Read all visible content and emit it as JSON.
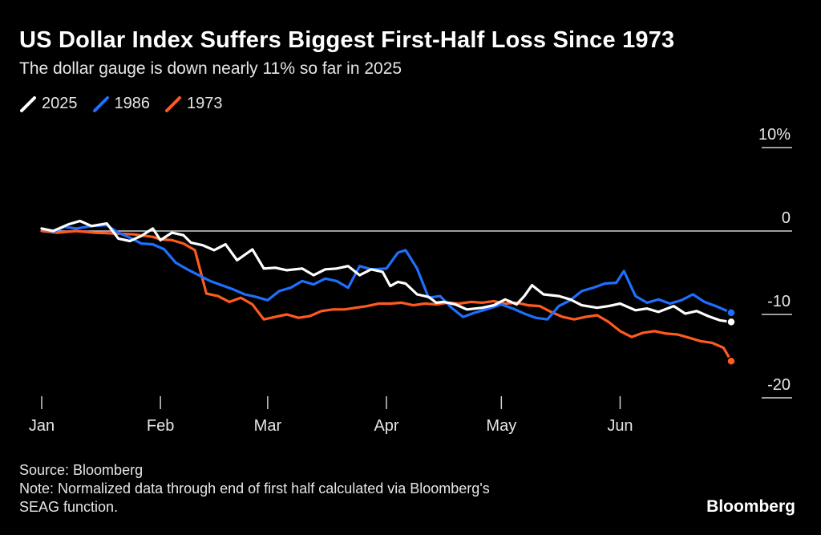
{
  "header": {
    "title": "US Dollar Index Suffers Biggest First-Half Loss Since 1973",
    "subtitle": "The dollar gauge is down nearly 11% so far in 2025"
  },
  "footer": {
    "source": "Source: Bloomberg",
    "note_line1": "Note: Normalized data through end of first half calculated via Bloomberg's",
    "note_line2": "SEAG function.",
    "brand": "Bloomberg"
  },
  "chart_data": {
    "type": "line",
    "title": "US Dollar Index Suffers Biggest First-Half Loss Since 1973",
    "xlabel": "",
    "ylabel": "",
    "x_unit": "day of year",
    "xlim": [
      1,
      181
    ],
    "ylim": [
      -20,
      10
    ],
    "y_ticks": [
      {
        "value": 10,
        "label": "10%"
      },
      {
        "value": 0,
        "label": "0"
      },
      {
        "value": -10,
        "label": "-10"
      },
      {
        "value": -20,
        "label": "-20"
      }
    ],
    "x_ticks": [
      {
        "value": 1,
        "label": "Jan"
      },
      {
        "value": 32,
        "label": "Feb"
      },
      {
        "value": 60,
        "label": "Mar"
      },
      {
        "value": 91,
        "label": "Apr"
      },
      {
        "value": 121,
        "label": "May"
      },
      {
        "value": 152,
        "label": "Jun"
      }
    ],
    "legend_position": "top-left",
    "series": [
      {
        "name": "2025",
        "color": "#ffffff",
        "x": [
          1,
          4,
          8,
          11,
          14,
          18,
          21,
          24,
          27,
          30,
          32,
          35,
          38,
          40,
          43,
          46,
          49,
          52,
          56,
          59,
          62,
          65,
          69,
          72,
          75,
          78,
          81,
          84,
          87,
          90,
          92,
          94,
          96,
          99,
          102,
          104,
          106,
          109,
          112,
          116,
          119,
          122,
          125,
          127,
          129,
          132,
          136,
          139,
          142,
          146,
          149,
          152,
          156,
          159,
          162,
          166,
          169,
          172,
          175,
          178,
          181
        ],
        "values": [
          0.3,
          0,
          0.8,
          1.2,
          0.6,
          0.9,
          -0.9,
          -1.2,
          -0.6,
          0.3,
          -1.1,
          -0.2,
          -0.5,
          -1.4,
          -1.7,
          -2.3,
          -1.6,
          -3.5,
          -2.2,
          -4.5,
          -4.4,
          -4.7,
          -4.5,
          -5.3,
          -4.6,
          -4.5,
          -4.2,
          -5.3,
          -4.6,
          -4.9,
          -6.6,
          -6.1,
          -6.3,
          -7.6,
          -7.9,
          -8.6,
          -8.5,
          -8.8,
          -9.4,
          -9.2,
          -8.9,
          -8.2,
          -8.8,
          -7.8,
          -6.5,
          -7.6,
          -7.8,
          -8.2,
          -8.9,
          -9.2,
          -9.0,
          -8.7,
          -9.5,
          -9.3,
          -9.7,
          -9.0,
          -9.9,
          -9.6,
          -10.2,
          -10.7,
          -10.9
        ]
      },
      {
        "name": "1986",
        "color": "#1f6fff",
        "x": [
          1,
          4,
          7,
          10,
          14,
          18,
          21,
          24,
          27,
          30,
          33,
          36,
          39,
          42,
          45,
          48,
          51,
          54,
          57,
          60,
          63,
          66,
          69,
          72,
          75,
          78,
          81,
          84,
          87,
          91,
          94,
          96,
          99,
          102,
          105,
          108,
          111,
          114,
          117,
          121,
          124,
          127,
          130,
          133,
          136,
          139,
          142,
          145,
          148,
          151,
          153,
          156,
          159,
          162,
          165,
          168,
          171,
          174,
          177,
          181
        ],
        "values": [
          0.3,
          -0.1,
          0.5,
          0.3,
          0.6,
          0.7,
          -0.2,
          -0.8,
          -1.5,
          -1.6,
          -2.2,
          -3.8,
          -4.6,
          -5.3,
          -6.0,
          -6.5,
          -7.0,
          -7.6,
          -7.9,
          -8.3,
          -7.2,
          -6.8,
          -6.0,
          -6.4,
          -5.7,
          -6.0,
          -6.8,
          -4.2,
          -4.6,
          -4.5,
          -2.6,
          -2.3,
          -4.5,
          -8.0,
          -7.8,
          -9.2,
          -10.3,
          -9.8,
          -9.4,
          -8.8,
          -9.3,
          -9.9,
          -10.4,
          -10.6,
          -9.0,
          -8.3,
          -7.2,
          -6.8,
          -6.3,
          -6.2,
          -4.8,
          -7.8,
          -8.6,
          -8.2,
          -8.7,
          -8.3,
          -7.6,
          -8.5,
          -9.0,
          -9.8
        ]
      },
      {
        "name": "1973",
        "color": "#ff5a1f",
        "x": [
          1,
          5,
          10,
          15,
          20,
          25,
          30,
          32,
          35,
          38,
          41,
          44,
          47,
          50,
          53,
          56,
          59,
          62,
          65,
          68,
          71,
          74,
          77,
          80,
          83,
          86,
          89,
          92,
          95,
          98,
          101,
          104,
          107,
          110,
          113,
          116,
          119,
          122,
          125,
          128,
          131,
          134,
          137,
          140,
          143,
          146,
          149,
          152,
          155,
          158,
          161,
          164,
          167,
          170,
          173,
          176,
          179,
          181
        ],
        "values": [
          0,
          -0.2,
          0,
          -0.2,
          -0.3,
          -0.4,
          -0.7,
          -1.0,
          -1.1,
          -1.5,
          -2.3,
          -7.5,
          -7.8,
          -8.5,
          -8.0,
          -8.8,
          -10.6,
          -10.3,
          -10.0,
          -10.4,
          -10.2,
          -9.6,
          -9.4,
          -9.4,
          -9.2,
          -9.0,
          -8.7,
          -8.7,
          -8.6,
          -8.9,
          -8.7,
          -8.8,
          -8.6,
          -8.7,
          -8.5,
          -8.6,
          -8.4,
          -8.7,
          -8.6,
          -8.9,
          -9.0,
          -9.7,
          -10.3,
          -10.6,
          -10.3,
          -10.1,
          -10.9,
          -12.0,
          -12.7,
          -12.2,
          -12.0,
          -12.3,
          -12.4,
          -12.8,
          -13.2,
          -13.4,
          -14.0,
          -15.6
        ]
      }
    ]
  }
}
